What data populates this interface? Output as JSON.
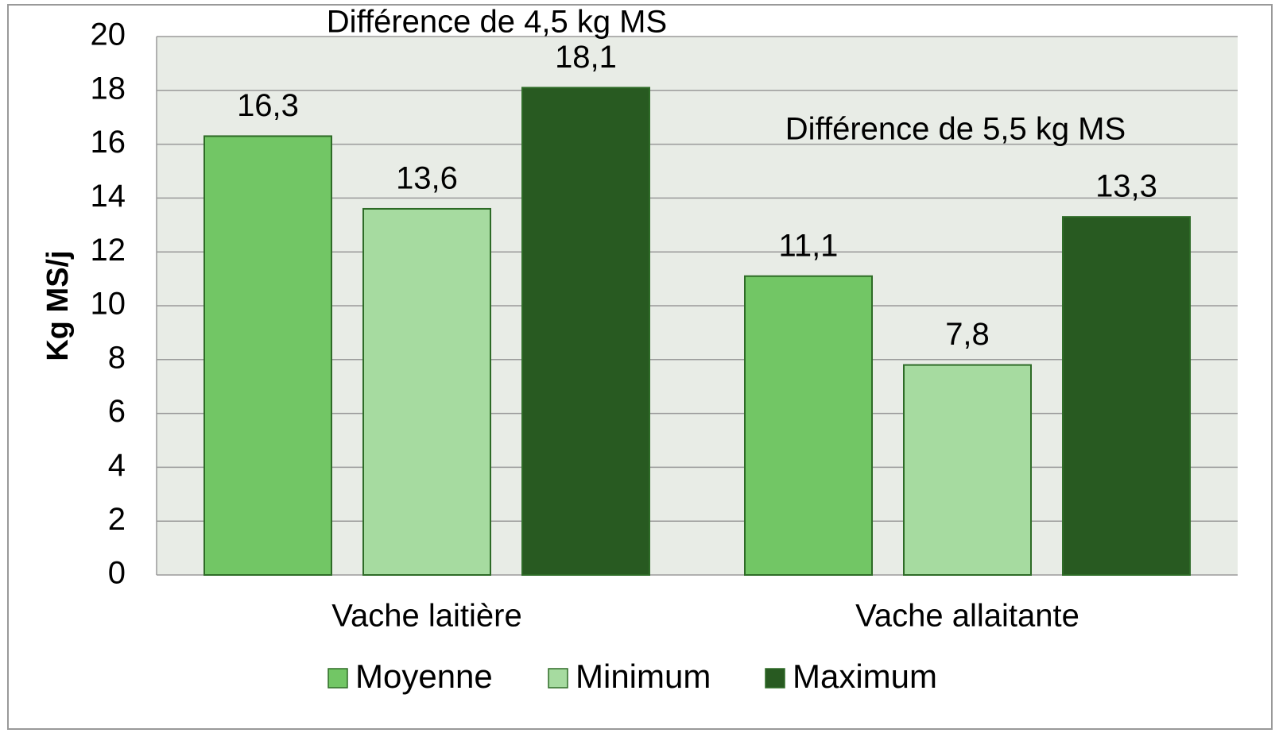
{
  "chart_data": {
    "type": "bar",
    "categories": [
      "Vache laitière",
      "Vache allaitante"
    ],
    "series": [
      {
        "name": "Moyenne",
        "color": "#72c665",
        "values": [
          16.3,
          11.1
        ],
        "value_labels": [
          "16,3",
          "11,1"
        ]
      },
      {
        "name": "Minimum",
        "color": "#a6dba0",
        "values": [
          13.6,
          7.8
        ],
        "value_labels": [
          "13,6",
          "7,8"
        ]
      },
      {
        "name": "Maximum",
        "color": "#285a21",
        "values": [
          18.1,
          13.3
        ],
        "value_labels": [
          "18,1",
          "13,3"
        ]
      }
    ],
    "y_label": "Kg MS/j",
    "annotations": [
      "Différence de 4,5 kg MS",
      "Différence de 5,5 kg MS"
    ],
    "ylim": [
      0,
      20
    ],
    "yticks": [
      0,
      2,
      4,
      6,
      8,
      10,
      12,
      14,
      16,
      18,
      20
    ],
    "grid": true,
    "legend": "bottom"
  }
}
